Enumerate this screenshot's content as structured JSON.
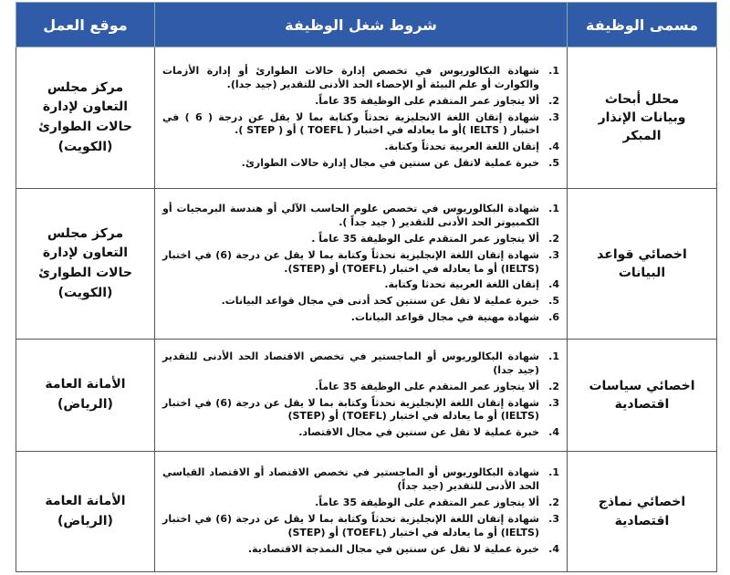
{
  "table": {
    "header": [
      "مسمى الوظيفة",
      "شروط شغل الوظيفة",
      "موقع العمل"
    ],
    "rows": [
      {
        "title": "محلل أبحاث وبيانات الإنذار المبكر",
        "conditions": [
          {
            "num": "1.",
            "text": "شهادة البكالوريوس في تخصص إدارة حالات الطوارئ أو إدارة الأزمات والكوارث أو علم البيئة أو الإحصاء الحد الأدنى للتقدير (جيد جدا)."
          },
          {
            "num": "2.",
            "text": "ألا يتجاوز عمر المتقدم على الوظيفة 35 عاماً."
          },
          {
            "num": "3.",
            "text": "شهادة إتقان اللغة الانجليزية تحدثاً وكتابة بما لا يقل عن درجة ( 6 ) في اختبار ( IELTS )أو ما يعادله في اختبار ( TOEFL ) أو ( STEP )."
          },
          {
            "num": "4.",
            "text": "إتقان اللغة العربية تحدثاً وكتابة."
          },
          {
            "num": "5.",
            "text": "خبرة عملية لاتقل عن سنتين في مجال إدارة حالات الطوارئ."
          }
        ],
        "location": {
          "name": "مركز مجلس التعاون لإدارة حالات الطوارئ",
          "city": "(الكويت)"
        }
      },
      {
        "title": "اخصائي قواعد البيانات",
        "conditions": [
          {
            "num": "1.",
            "text": "شهادة البكالوريوس في تخصص علوم الحاسب الآلي أو هندسة البرمجيات أو الكمبيوتر الحد الأدنى للتقدير ( جيد جداً )."
          },
          {
            "num": "2.",
            "text": "ألا يتجاوز عمر المتقدم على الوظيفة 35 عاماً ."
          },
          {
            "num": "3.",
            "text": "شهادة إتقان اللغة الإنجليزية تحدثاً وكتابة بما لا يقل عن درجة (6) في اختبار (IELTS) أو ما يعادله في اختبار (TOEFL) أو (STEP)."
          },
          {
            "num": "4.",
            "text": "إتقان اللغة العربية تحدثا وكتابة."
          },
          {
            "num": "5.",
            "text": "خبرة عملية لا تقل عن سنتين كحد أدنى في مجال قواعد البيانات."
          },
          {
            "num": "6.",
            "text": "شهادة مهنية في مجال قواعد البيانات."
          }
        ],
        "location": {
          "name": "مركز مجلس التعاون لإدارة حالات الطوارئ",
          "city": "(الكويت)"
        }
      },
      {
        "title": "اخصائي سياسات اقتصادية",
        "conditions": [
          {
            "num": "1.",
            "text": "شهادة البكالوريوس أو الماجستير في تخصص الاقتصاد الحد الأدنى للتقدير (جيد جدا)"
          },
          {
            "num": "2.",
            "text": "ألا يتجاوز عمر المتقدم على الوظيفة 35 عاماً."
          },
          {
            "num": "3.",
            "text": "شهادة إتقان اللغة الإنجليزية تحدثاً وكتابة بما لا يقل عن درجة (6) في اختبار (IELTS) أو ما يعادله في اختبار (TOEFL) أو (STEP)"
          },
          {
            "num": "4.",
            "text": "خبرة عملية لا تقل عن سنتين في مجال الاقتصاد."
          }
        ],
        "location": {
          "name": "الأمانة العامة",
          "city": "(الرياض)"
        }
      },
      {
        "title": "اخصائي نماذج اقتصادية",
        "conditions": [
          {
            "num": "1.",
            "text": "شهادة البكالوريوس أو الماجستير في تخصص الاقتصاد أو الاقتصاد القياسي الحد الأدنى للتقدير (جيد جداً)"
          },
          {
            "num": "2.",
            "text": "ألا يتجاوز عمر المتقدم على الوظيفة 35 عاماً."
          },
          {
            "num": "3.",
            "text": "شهادة إتقان اللغة الإنجليزية تحدثاً وكتابة بما لا يقل عن درجة (6) في اختبار (IELTS) أو ما يعادله في اختبار (TOEFL) أو (STEP)"
          },
          {
            "num": "4.",
            "text": "خبرة عملية لا تقل عن سنتين في مجال النمذجة الاقتصادية."
          }
        ],
        "location": {
          "name": "الأمانة العامة",
          "city": "(الرياض)"
        }
      }
    ]
  }
}
